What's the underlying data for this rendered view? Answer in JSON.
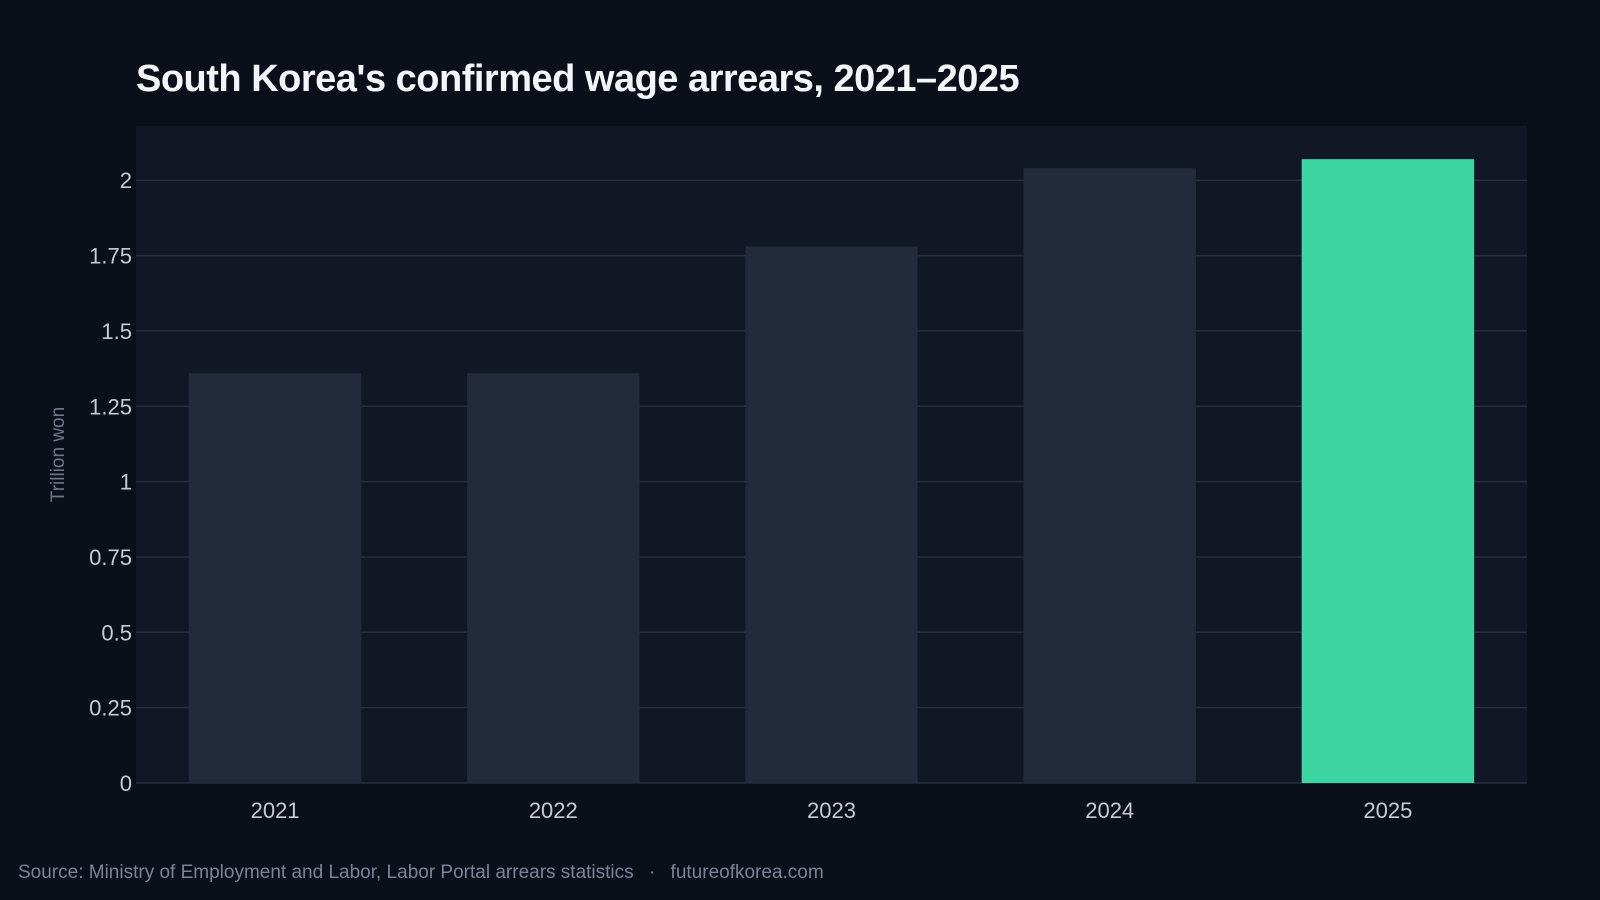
{
  "colors": {
    "background": "#0b0f19",
    "plot_background": "#111725",
    "gridline": "#262d3d",
    "bar_default": "#222a3c",
    "bar_highlight": "#3dd6a3"
  },
  "source": {
    "text": "Source: Ministry of Employment and Labor, Labor Portal arrears statistics",
    "separator": "·",
    "site": "futureofkorea.com"
  },
  "chart_data": {
    "type": "bar",
    "title": "South Korea's confirmed wage arrears, 2021–2025",
    "xlabel": "",
    "ylabel": "Trillion won",
    "categories": [
      "2021",
      "2022",
      "2023",
      "2024",
      "2025"
    ],
    "values": [
      1.36,
      1.36,
      1.78,
      2.04,
      2.07
    ],
    "highlight": [
      "2025"
    ],
    "ylim": [
      0,
      2.18
    ],
    "yticks": [
      0,
      0.25,
      0.5,
      0.75,
      1,
      1.25,
      1.5,
      1.75,
      2
    ],
    "ytick_labels": [
      "0",
      "0.25",
      "0.5",
      "0.75",
      "1",
      "1.25",
      "1.5",
      "1.75",
      "2"
    ],
    "grid": "horizontal",
    "legend": "none"
  }
}
